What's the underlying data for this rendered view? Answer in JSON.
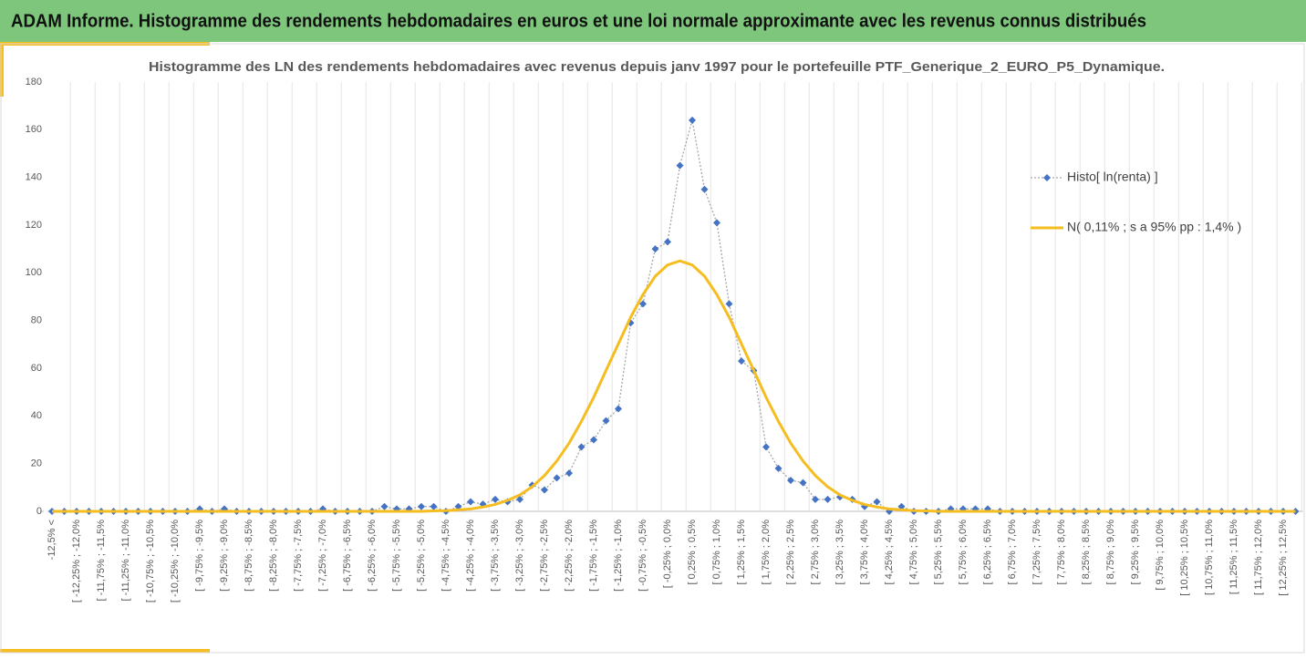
{
  "header": {
    "title": "ADAM Informe. Histogramme des rendements hebdomadaires en euros et une loi normale approximante avec les revenus connus distribués"
  },
  "chart_data": {
    "type": "line",
    "title": "Histogramme des LN des rendements hebdomadaires avec revenus depuis janv 1997 pour le portefeuille PTF_Generique_2_EURO_P5_Dynamique.",
    "categories": [
      "-12,5% <",
      null,
      "[ -12,25% ; -12,0%",
      null,
      "[ -11,75% ; -11,5%",
      null,
      "[ -11,25% ; -11,0%",
      null,
      "[ -10,75% ; -10,5%",
      null,
      "[ -10,25% ; -10,0%",
      null,
      "[ -9,75% ; -9,5%",
      null,
      "[ -9,25% ; -9,0%",
      null,
      "[ -8,75% ; -8,5%",
      null,
      "[ -8,25% ; -8,0%",
      null,
      "[ -7,75% ; -7,5%",
      null,
      "[ -7,25% ; -7,0%",
      null,
      "[ -6,75% ; -6,5%",
      null,
      "[ -6,25% ; -6,0%",
      null,
      "[ -5,75% ; -5,5%",
      null,
      "[ -5,25% ; -5,0%",
      null,
      "[ -4,75% ; -4,5%",
      null,
      "[ -4,25% ; -4,0%",
      null,
      "[ -3,75% ; -3,5%",
      null,
      "[ -3,25% ; -3,0%",
      null,
      "[ -2,75% ; -2,5%",
      null,
      "[ -2,25% ; -2,0%",
      null,
      "[ -1,75% ; -1,5%",
      null,
      "[ -1,25% ; -1,0%",
      null,
      "[ -0,75% ; -0,5%",
      null,
      "[ -0,25% ; 0,0%",
      null,
      "[ 0,25% ; 0,5%",
      null,
      "[ 0,75% ; 1,0%",
      null,
      "[ 1,25% ; 1,5%",
      null,
      "[ 1,75% ; 2,0%",
      null,
      "[ 2,25% ; 2,5%",
      null,
      "[ 2,75% ; 3,0%",
      null,
      "[ 3,25% ; 3,5%",
      null,
      "[ 3,75% ; 4,0%",
      null,
      "[ 4,25% ; 4,5%",
      null,
      "[ 4,75% ; 5,0%",
      null,
      "[ 5,25% ; 5,5%",
      null,
      "[ 5,75% ; 6,0%",
      null,
      "[ 6,25% ; 6,5%",
      null,
      "[ 6,75% ; 7,0%",
      null,
      "[ 7,25% ; 7,5%",
      null,
      "[ 7,75% ; 8,0%",
      null,
      "[ 8,25% ; 8,5%",
      null,
      "[ 8,75% ; 9,0%",
      null,
      "[ 9,25% ; 9,5%",
      null,
      "[ 9,75% ; 10,0%",
      null,
      "[ 10,25% ; 10,5%",
      null,
      "[ 10,75% ; 11,0%",
      null,
      "[ 11,25% ; 11,5%",
      null,
      "[ 11,75% ; 12,0%",
      null,
      "[ 12,25% ; 12,5%",
      null
    ],
    "series": [
      {
        "name": "Histo[ ln(renta) ]",
        "color": "#4472c4",
        "values": [
          0,
          0,
          0,
          0,
          0,
          0,
          0,
          0,
          0,
          0,
          0,
          0,
          1,
          0,
          1,
          0,
          0,
          0,
          0,
          0,
          0,
          0,
          1,
          0,
          0,
          0,
          0,
          2,
          1,
          1,
          2,
          2,
          0,
          2,
          4,
          3,
          5,
          4,
          5,
          11,
          9,
          14,
          16,
          27,
          30,
          38,
          43,
          79,
          87,
          110,
          113,
          145,
          164,
          135,
          121,
          87,
          63,
          59,
          27,
          18,
          13,
          12,
          5,
          5,
          6,
          5,
          2,
          4,
          0,
          2,
          0,
          0,
          0,
          1,
          1,
          1,
          1,
          0,
          0,
          0,
          0,
          0,
          0,
          0,
          0,
          0,
          0,
          0,
          0,
          0,
          0,
          0,
          0,
          0,
          0,
          0,
          0,
          0,
          0,
          0,
          0,
          0
        ]
      },
      {
        "name": "N( 0,11% ; s a 95% pp : 1,4% )",
        "color": "#f5bd1f",
        "values": [
          0,
          0,
          0,
          0,
          0,
          0,
          0,
          0,
          0,
          0,
          0,
          0,
          0,
          0,
          0,
          0,
          0,
          0,
          0,
          0,
          0,
          0,
          0,
          0,
          0,
          0,
          0,
          0,
          0,
          0,
          0,
          0.2,
          0.3,
          0.6,
          1.0,
          1.8,
          2.9,
          4.6,
          6.9,
          10.3,
          15.0,
          21.1,
          28.6,
          37.7,
          47.8,
          59.1,
          70.2,
          81.4,
          90.9,
          98.6,
          103.3,
          105,
          103.3,
          98.6,
          90.9,
          81.4,
          70.2,
          59.1,
          47.8,
          37.7,
          28.6,
          21.1,
          15.0,
          10.3,
          6.9,
          4.6,
          2.9,
          1.8,
          1.0,
          0.6,
          0.3,
          0.2,
          0,
          0,
          0,
          0,
          0,
          0,
          0,
          0,
          0,
          0,
          0,
          0,
          0,
          0,
          0,
          0,
          0,
          0,
          0,
          0,
          0,
          0,
          0,
          0,
          0,
          0,
          0,
          0,
          0,
          0
        ]
      }
    ],
    "ylim": [
      0,
      180
    ],
    "yticks": [
      0,
      20,
      40,
      60,
      80,
      100,
      120,
      140,
      160,
      180
    ]
  }
}
